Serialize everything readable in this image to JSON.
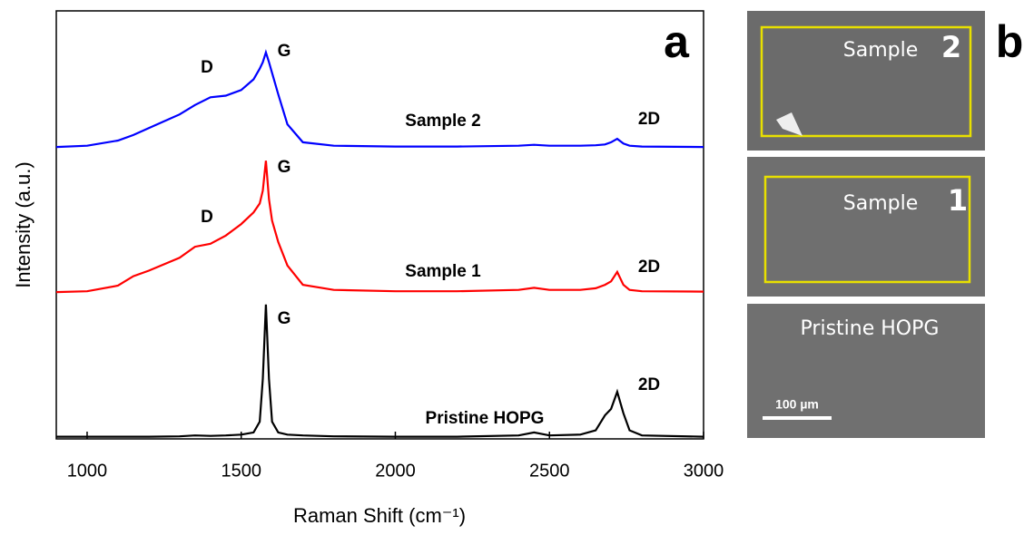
{
  "chart_data": {
    "type": "line",
    "panel_label": "a",
    "x_label": "Raman Shift (cm⁻¹)",
    "y_label": "Intensity (a.u.)",
    "x": [
      900,
      1000,
      1100,
      1150,
      1200,
      1300,
      1350,
      1400,
      1450,
      1500,
      1540,
      1560,
      1570,
      1580,
      1590,
      1600,
      1620,
      1650,
      1700,
      1800,
      2000,
      2200,
      2400,
      2450,
      2500,
      2600,
      2650,
      2680,
      2700,
      2720,
      2740,
      2760,
      2800,
      3000
    ],
    "series": [
      {
        "name": "Sample 2",
        "color": "#0000ff",
        "values": [
          68.2,
          68.5,
          69.7,
          71,
          72.6,
          75.8,
          78,
          79.8,
          80.2,
          81.5,
          84,
          86.5,
          88,
          90.3,
          88,
          85.5,
          80.5,
          73.5,
          69.3,
          68.5,
          68.3,
          68.3,
          68.5,
          68.7,
          68.5,
          68.5,
          68.6,
          68.8,
          69.3,
          70.1,
          69,
          68.5,
          68.3,
          68.2
        ]
      },
      {
        "name": "Sample 1",
        "color": "#ff0000",
        "values": [
          34.3,
          34.5,
          35.8,
          38,
          39.3,
          42.3,
          44.9,
          45.6,
          47.5,
          50.2,
          52.9,
          55,
          58,
          65,
          56,
          51,
          46,
          40.5,
          36,
          34.8,
          34.5,
          34.5,
          34.8,
          35.3,
          34.8,
          34.8,
          35.2,
          36,
          36.8,
          39,
          36,
          34.8,
          34.5,
          34.4
        ]
      },
      {
        "name": "Pristine HOPG",
        "color": "#000000",
        "values": [
          0.5,
          0.5,
          0.5,
          0.5,
          0.5,
          0.6,
          0.8,
          0.7,
          0.8,
          1,
          1.5,
          4,
          14,
          31.4,
          14,
          4,
          1.5,
          1,
          0.8,
          0.6,
          0.5,
          0.5,
          0.8,
          1.5,
          0.8,
          1,
          2,
          5.5,
          7,
          11,
          6,
          2,
          0.8,
          0.5
        ]
      }
    ],
    "annotations": [
      "D",
      "G",
      "2D",
      "D",
      "G",
      "2D",
      "G",
      "2D"
    ],
    "xlim": [
      900,
      3000
    ],
    "xticks": [
      1000,
      1500,
      2000,
      2500,
      3000
    ],
    "ylim": [
      0,
      100
    ]
  },
  "panel_b": {
    "label": "b",
    "images": [
      {
        "caption": "Sample",
        "number": "2"
      },
      {
        "caption": "Sample",
        "number": "1"
      },
      {
        "caption": "Pristine HOPG"
      }
    ],
    "scale_bar": "100 µm"
  }
}
